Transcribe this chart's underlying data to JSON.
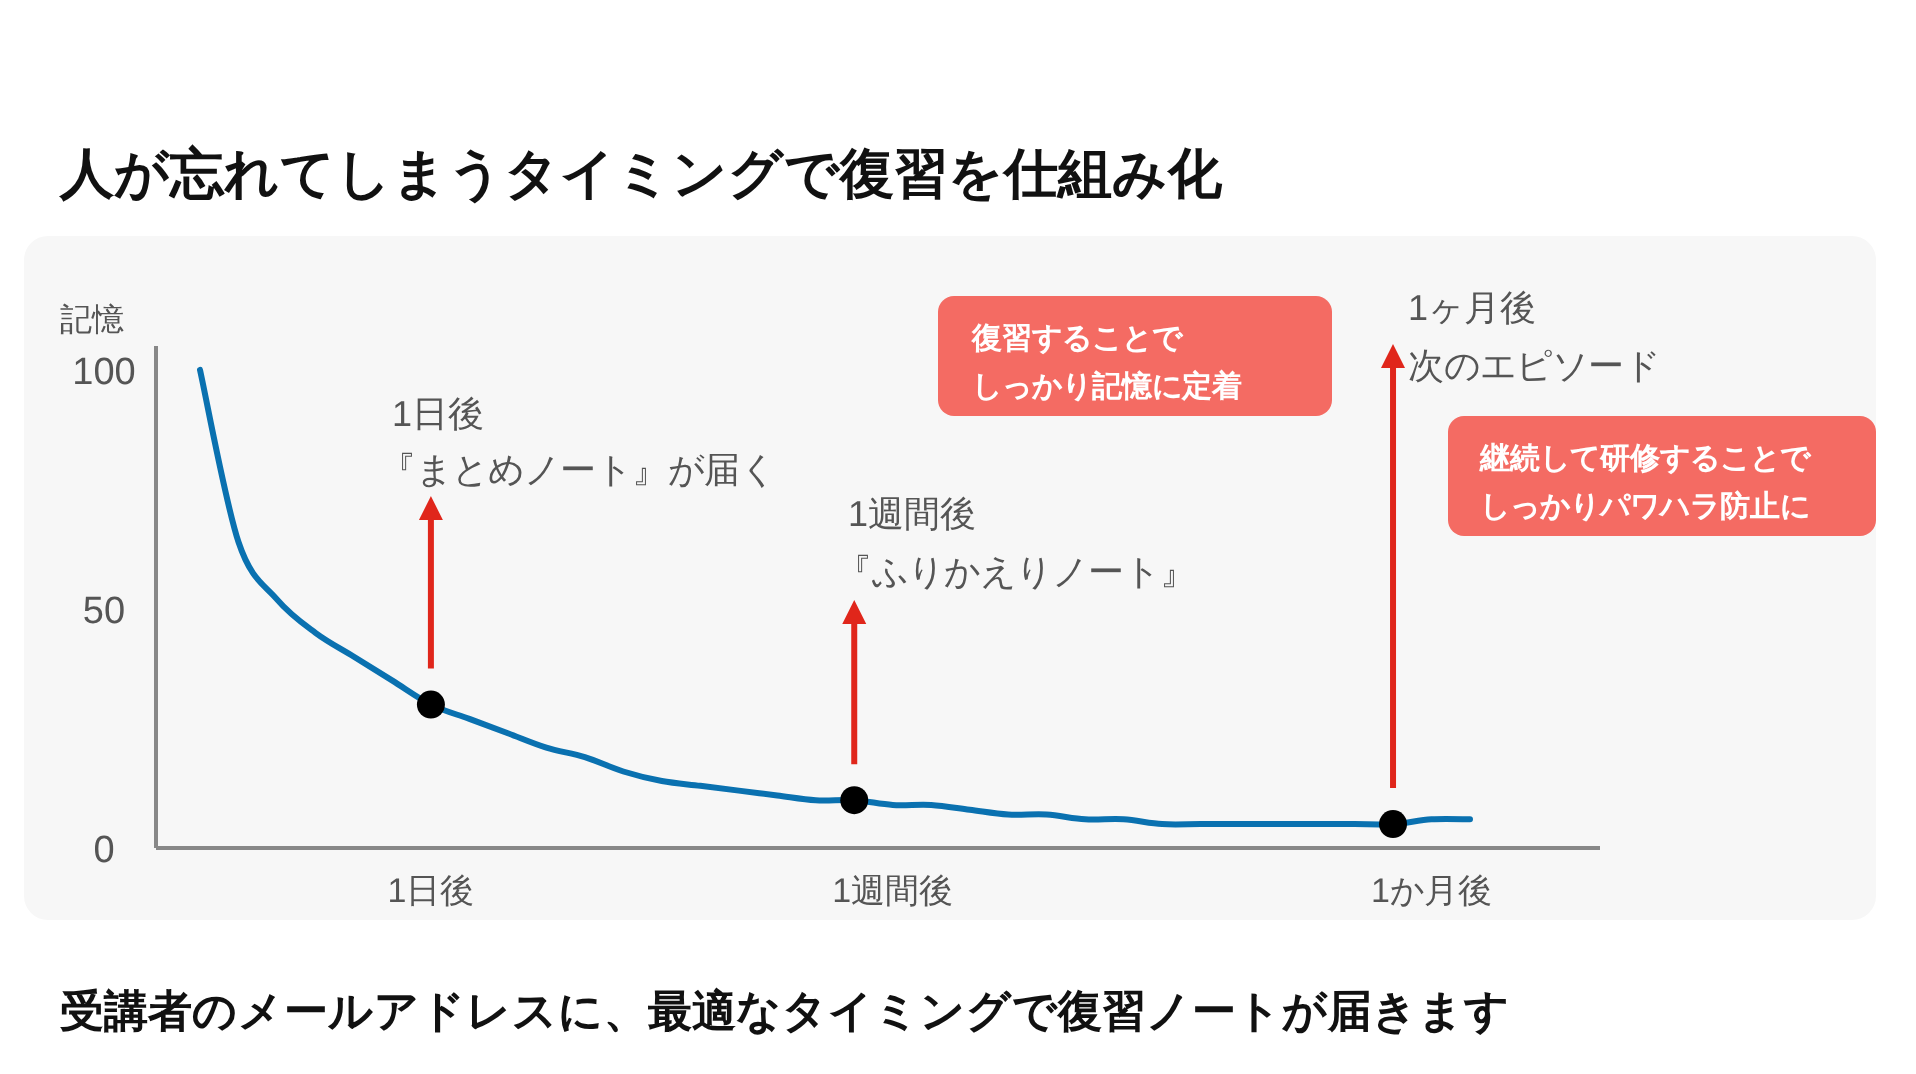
{
  "chart_data": {
    "type": "line",
    "title": "人が忘れてしまうタイミングで復習を仕組み化",
    "ylabel": "記憶",
    "categories": [
      null,
      null,
      null,
      null,
      null,
      null,
      "1日後",
      null,
      null,
      null,
      null,
      null,
      null,
      null,
      null,
      null,
      null,
      null,
      "1週間後",
      null,
      null,
      null,
      null,
      null,
      null,
      null,
      null,
      null,
      null,
      null,
      null,
      null,
      "1か月後",
      null
    ],
    "ylim": [
      0,
      105
    ],
    "yticks": [
      0,
      50,
      100
    ],
    "grid": false,
    "series": [
      {
        "color": "#0a71b0",
        "values": [
          100,
          64,
          52,
          45,
          40,
          35,
          30,
          27,
          24,
          21,
          19,
          16,
          14,
          13,
          12,
          11,
          10,
          10,
          9,
          9,
          8,
          7,
          7,
          6,
          6,
          5,
          5,
          5,
          5,
          5,
          5,
          5,
          6,
          6
        ]
      },
      {
        "type": "scatter",
        "color": "#000000",
        "marker": "circle",
        "values": [
          null,
          null,
          null,
          null,
          null,
          null,
          30,
          null,
          null,
          null,
          null,
          null,
          null,
          null,
          null,
          null,
          null,
          10,
          null,
          null,
          null,
          null,
          null,
          null,
          null,
          null,
          null,
          null,
          null,
          null,
          null,
          5,
          null,
          null
        ]
      }
    ],
    "annotations": [
      "1日後",
      "『まとめノート』が届く",
      "1週間後",
      "『ふりかえりノート』",
      "1ヶ月後",
      "次のエピソード",
      "復習することで",
      "しっかり記憶に定着",
      "継続して研修することで",
      "しっかりパワハラ防止に",
      "受講者のメールアドレスに、最適なタイミングで復習ノートが届きます"
    ]
  }
}
